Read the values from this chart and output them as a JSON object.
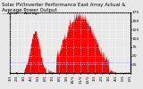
{
  "title": "Solar PV/Inverter Performance East Array Actual & Average Power Output",
  "bg_color": "#e8e8e8",
  "plot_bg_color": "#e8e8e8",
  "grid_color": "#ffffff",
  "bar_color": "#ff0000",
  "avg_line_color": "#aaaaff",
  "ylim": [
    0,
    175
  ],
  "yticks": [
    25,
    50,
    75,
    100,
    125,
    150,
    175
  ],
  "title_fontsize": 4.0,
  "tick_fontsize": 3.2,
  "avg_line_y": 32,
  "num_points": 300,
  "legend_label_actual": "Actual",
  "legend_label_avg": "Average"
}
